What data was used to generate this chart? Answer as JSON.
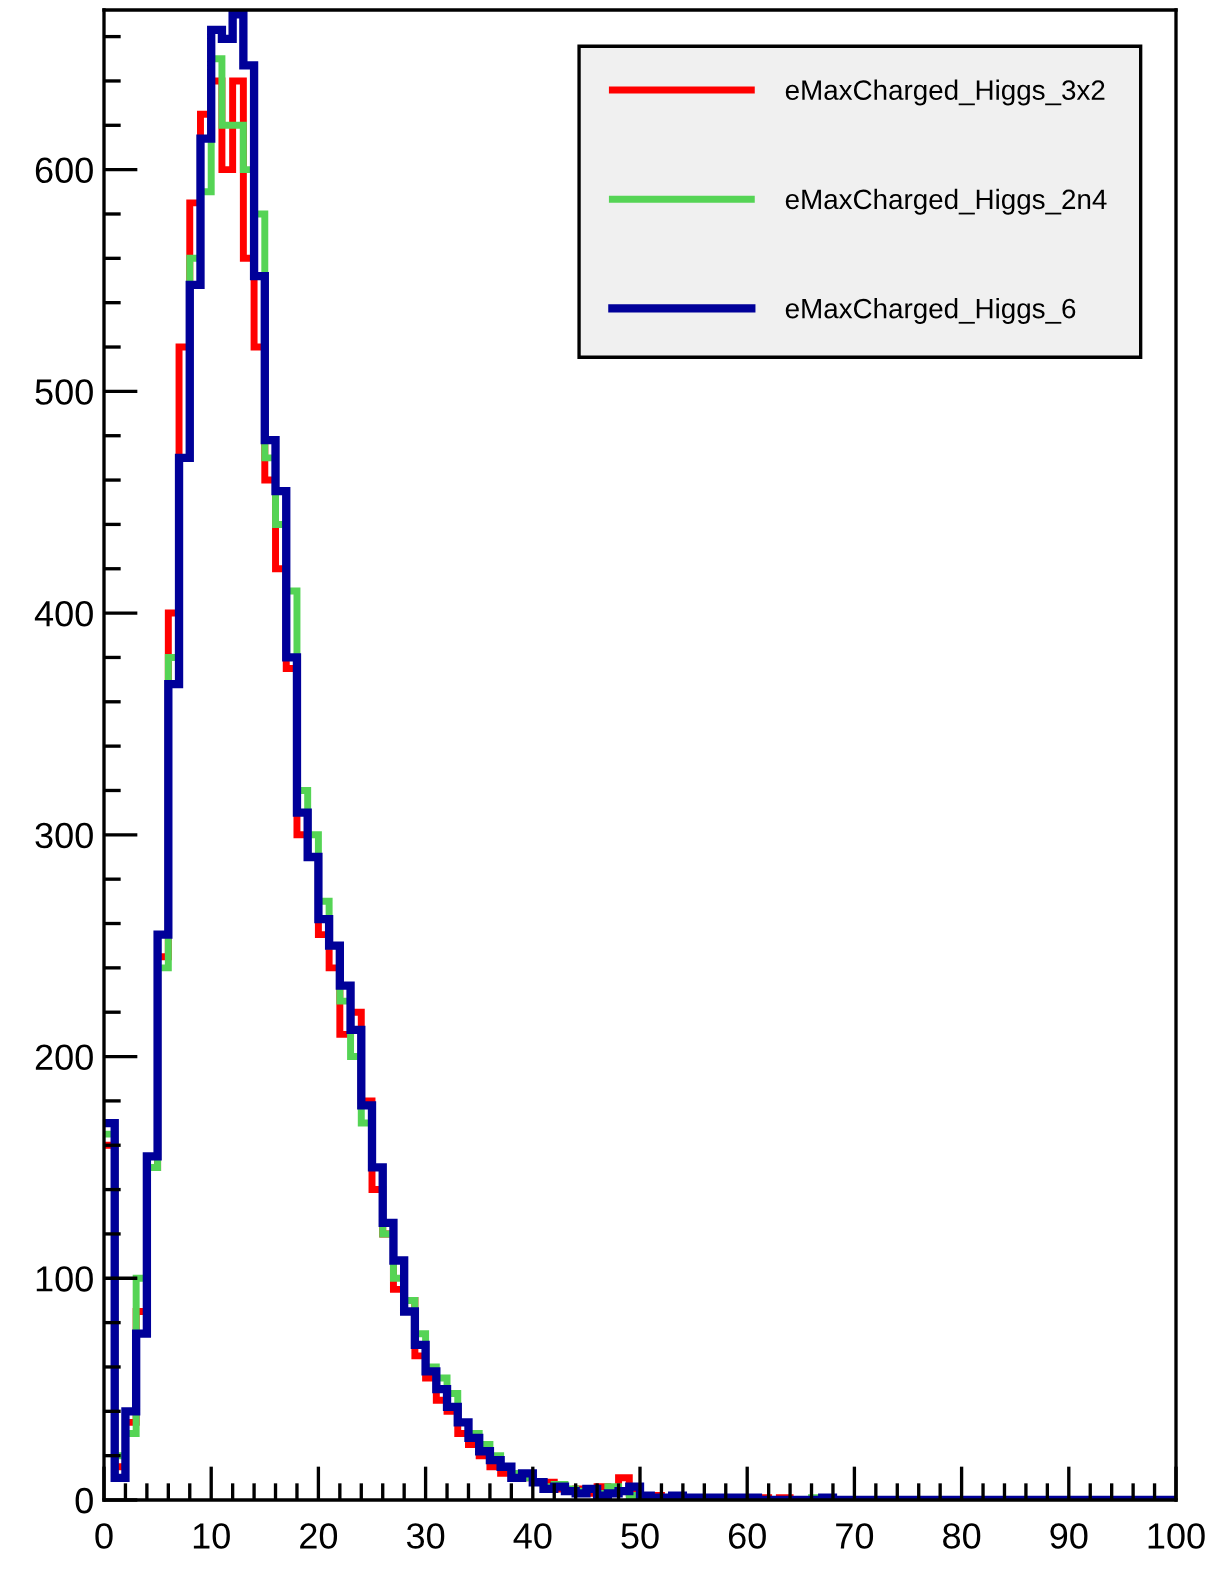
{
  "chart_data": {
    "type": "histogram",
    "bins": [
      0,
      1,
      2,
      3,
      4,
      5,
      6,
      7,
      8,
      9,
      10,
      11,
      12,
      13,
      14,
      15,
      16,
      17,
      18,
      19,
      20,
      21,
      22,
      23,
      24,
      25,
      26,
      27,
      28,
      29,
      30,
      31,
      32,
      33,
      34,
      35,
      36,
      37,
      38,
      39,
      40,
      41,
      42,
      43,
      44,
      45,
      46,
      47,
      48,
      49,
      50,
      51,
      52,
      53,
      54,
      55,
      56,
      57,
      58,
      59,
      60,
      61,
      62,
      63,
      64,
      65,
      66,
      67,
      68,
      69,
      70,
      71,
      72,
      73,
      74,
      75,
      76,
      77,
      78,
      79,
      80,
      81,
      82,
      83,
      84,
      85,
      86,
      87,
      88,
      89,
      90,
      91,
      92,
      93,
      94,
      95,
      96,
      97,
      98,
      99,
      100
    ],
    "series": [
      {
        "name": "eMaxCharged_Higgs_3x2",
        "color": "#ff0000",
        "values": [
          160,
          15,
          35,
          85,
          150,
          245,
          400,
          520,
          585,
          625,
          640,
          600,
          640,
          560,
          520,
          460,
          420,
          375,
          300,
          290,
          255,
          240,
          210,
          220,
          180,
          140,
          120,
          95,
          90,
          65,
          55,
          45,
          40,
          30,
          25,
          20,
          15,
          12,
          10,
          10,
          8,
          8,
          5,
          4,
          5,
          3,
          6,
          4,
          10,
          3,
          2,
          2,
          1,
          1,
          1,
          1,
          1,
          1,
          0,
          0,
          0,
          1,
          0,
          1,
          0,
          0,
          0,
          0,
          0,
          0,
          0,
          0,
          0,
          0,
          0,
          0,
          0,
          0,
          0,
          0,
          0,
          0,
          0,
          0,
          0,
          0,
          0,
          0,
          0,
          0,
          0,
          0,
          0,
          0,
          0,
          0,
          0,
          0,
          0,
          0
        ]
      },
      {
        "name": "eMaxCharged_Higgs_2n4",
        "color": "#55d455",
        "values": [
          165,
          20,
          30,
          100,
          150,
          240,
          380,
          470,
          560,
          590,
          650,
          620,
          620,
          600,
          580,
          470,
          440,
          410,
          320,
          300,
          270,
          250,
          225,
          200,
          170,
          150,
          120,
          100,
          90,
          75,
          60,
          55,
          48,
          35,
          30,
          25,
          20,
          15,
          12,
          10,
          8,
          6,
          7,
          5,
          4,
          5,
          3,
          6,
          4,
          2,
          2,
          1,
          1,
          1,
          1,
          1,
          1,
          1,
          0,
          1,
          0,
          0,
          0,
          0,
          0,
          0,
          1,
          0,
          0,
          0,
          0,
          0,
          0,
          0,
          0,
          0,
          0,
          0,
          0,
          0,
          0,
          0,
          0,
          0,
          0,
          0,
          0,
          0,
          0,
          0,
          0,
          0,
          0,
          0,
          0,
          0,
          0,
          0,
          0,
          0
        ]
      },
      {
        "name": "eMaxCharged_Higgs_6",
        "color": "#000099",
        "values": [
          170,
          10,
          40,
          75,
          155,
          255,
          368,
          470,
          548,
          614,
          663,
          659,
          670,
          647,
          552,
          478,
          455,
          380,
          310,
          290,
          262,
          250,
          232,
          212,
          178,
          150,
          125,
          108,
          85,
          70,
          58,
          50,
          42,
          35,
          28,
          22,
          18,
          15,
          10,
          12,
          8,
          5,
          6,
          4,
          3,
          5,
          2,
          3,
          4,
          6,
          2,
          1,
          1,
          2,
          1,
          1,
          1,
          1,
          1,
          1,
          1,
          0,
          0,
          0,
          0,
          0,
          0,
          1,
          0,
          0,
          0,
          0,
          0,
          0,
          0,
          0,
          0,
          0,
          0,
          0,
          0,
          0,
          0,
          0,
          0,
          0,
          0,
          0,
          0,
          0,
          0,
          0,
          0,
          0,
          0,
          0,
          0,
          0,
          0,
          0
        ]
      }
    ],
    "xlim": [
      0,
      100
    ],
    "xticks": [
      0,
      {
        "value": 2,
        "label": null
      },
      {
        "value": 4,
        "label": null
      },
      {
        "value": 6,
        "label": null
      },
      {
        "value": 8,
        "label": null
      },
      10,
      {
        "value": 12,
        "label": null
      },
      {
        "value": 14,
        "label": null
      },
      {
        "value": 16,
        "label": null
      },
      {
        "value": 18,
        "label": null
      },
      20,
      {
        "value": 22,
        "label": null
      },
      {
        "value": 24,
        "label": null
      },
      {
        "value": 26,
        "label": null
      },
      {
        "value": 28,
        "label": null
      },
      30,
      {
        "value": 32,
        "label": null
      },
      {
        "value": 34,
        "label": null
      },
      {
        "value": 36,
        "label": null
      },
      {
        "value": 38,
        "label": null
      },
      40,
      {
        "value": 42,
        "label": null
      },
      {
        "value": 44,
        "label": null
      },
      {
        "value": 46,
        "label": null
      },
      {
        "value": 48,
        "label": null
      },
      50,
      {
        "value": 52,
        "label": null
      },
      {
        "value": 54,
        "label": null
      },
      {
        "value": 56,
        "label": null
      },
      {
        "value": 58,
        "label": null
      },
      60,
      {
        "value": 62,
        "label": null
      },
      {
        "value": 64,
        "label": null
      },
      {
        "value": 66,
        "label": null
      },
      {
        "value": 68,
        "label": null
      },
      70,
      {
        "value": 72,
        "label": null
      },
      {
        "value": 74,
        "label": null
      },
      {
        "value": 76,
        "label": null
      },
      {
        "value": 78,
        "label": null
      },
      80,
      {
        "value": 82,
        "label": null
      },
      {
        "value": 84,
        "label": null
      },
      {
        "value": 86,
        "label": null
      },
      {
        "value": 88,
        "label": null
      },
      90,
      {
        "value": 92,
        "label": null
      },
      {
        "value": 94,
        "label": null
      },
      {
        "value": 96,
        "label": null
      },
      {
        "value": 98,
        "label": null
      },
      100
    ],
    "ylim": [
      0,
      672
    ],
    "yticks": [
      0,
      {
        "value": 20,
        "label": null
      },
      {
        "value": 40,
        "label": null
      },
      {
        "value": 60,
        "label": null
      },
      {
        "value": 80,
        "label": null
      },
      100,
      {
        "value": 120,
        "label": null
      },
      {
        "value": 140,
        "label": null
      },
      {
        "value": 160,
        "label": null
      },
      {
        "value": 180,
        "label": null
      },
      200,
      {
        "value": 220,
        "label": null
      },
      {
        "value": 240,
        "label": null
      },
      {
        "value": 260,
        "label": null
      },
      {
        "value": 280,
        "label": null
      },
      300,
      {
        "value": 320,
        "label": null
      },
      {
        "value": 340,
        "label": null
      },
      {
        "value": 360,
        "label": null
      },
      {
        "value": 380,
        "label": null
      },
      400,
      {
        "value": 420,
        "label": null
      },
      {
        "value": 440,
        "label": null
      },
      {
        "value": 460,
        "label": null
      },
      {
        "value": 480,
        "label": null
      },
      500,
      {
        "value": 520,
        "label": null
      },
      {
        "value": 540,
        "label": null
      },
      {
        "value": 560,
        "label": null
      },
      {
        "value": 580,
        "label": null
      },
      600,
      {
        "value": 620,
        "label": null
      },
      {
        "value": 640,
        "label": null
      },
      {
        "value": 660,
        "label": null
      }
    ],
    "legend": "top right",
    "grid": false
  }
}
